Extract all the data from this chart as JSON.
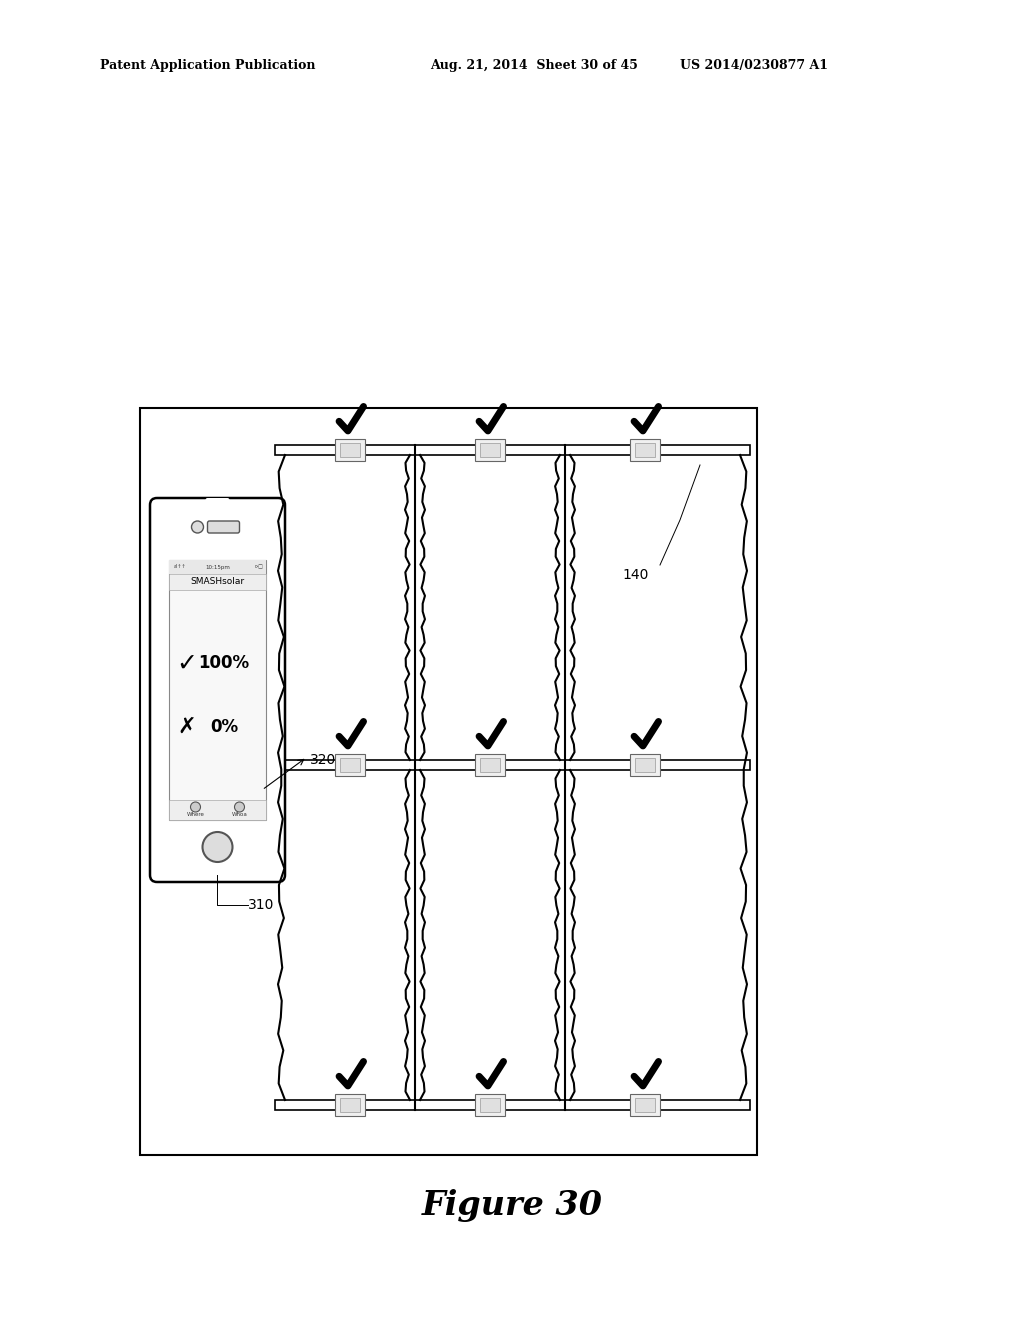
{
  "bg_color": "#ffffff",
  "header_text_left": "Patent Application Publication",
  "header_text_mid": "Aug. 21, 2014  Sheet 30 of 45",
  "header_text_right": "US 2014/0230877 A1",
  "figure_label": "Figure 30",
  "label_140": "140",
  "label_320": "320",
  "label_310": "310",
  "phone_app_title": "SMASHsolar",
  "phone_check": "100%",
  "phone_x": "0%",
  "phone_tab1": "Where",
  "phone_tab2": "Whoa"
}
